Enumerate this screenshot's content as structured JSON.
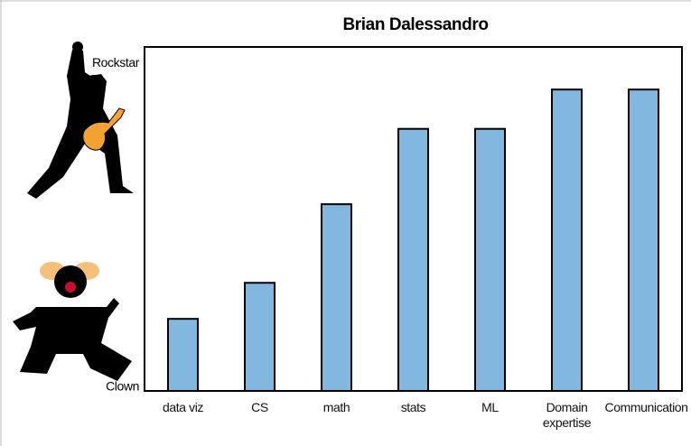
{
  "chart_data": {
    "type": "bar",
    "title": "Brian Dalessandro",
    "categories": [
      "data viz",
      "CS",
      "math",
      "stats",
      "ML",
      "Domain expertise",
      "Communication"
    ],
    "values": [
      22,
      33,
      57,
      80,
      80,
      92,
      92
    ],
    "color": "#82b7e0",
    "ylim": [
      0,
      105
    ],
    "yticks": [
      {
        "value": 0,
        "label": "Clown"
      },
      {
        "value": 100,
        "label": "Rockstar"
      }
    ],
    "grid": false
  }
}
